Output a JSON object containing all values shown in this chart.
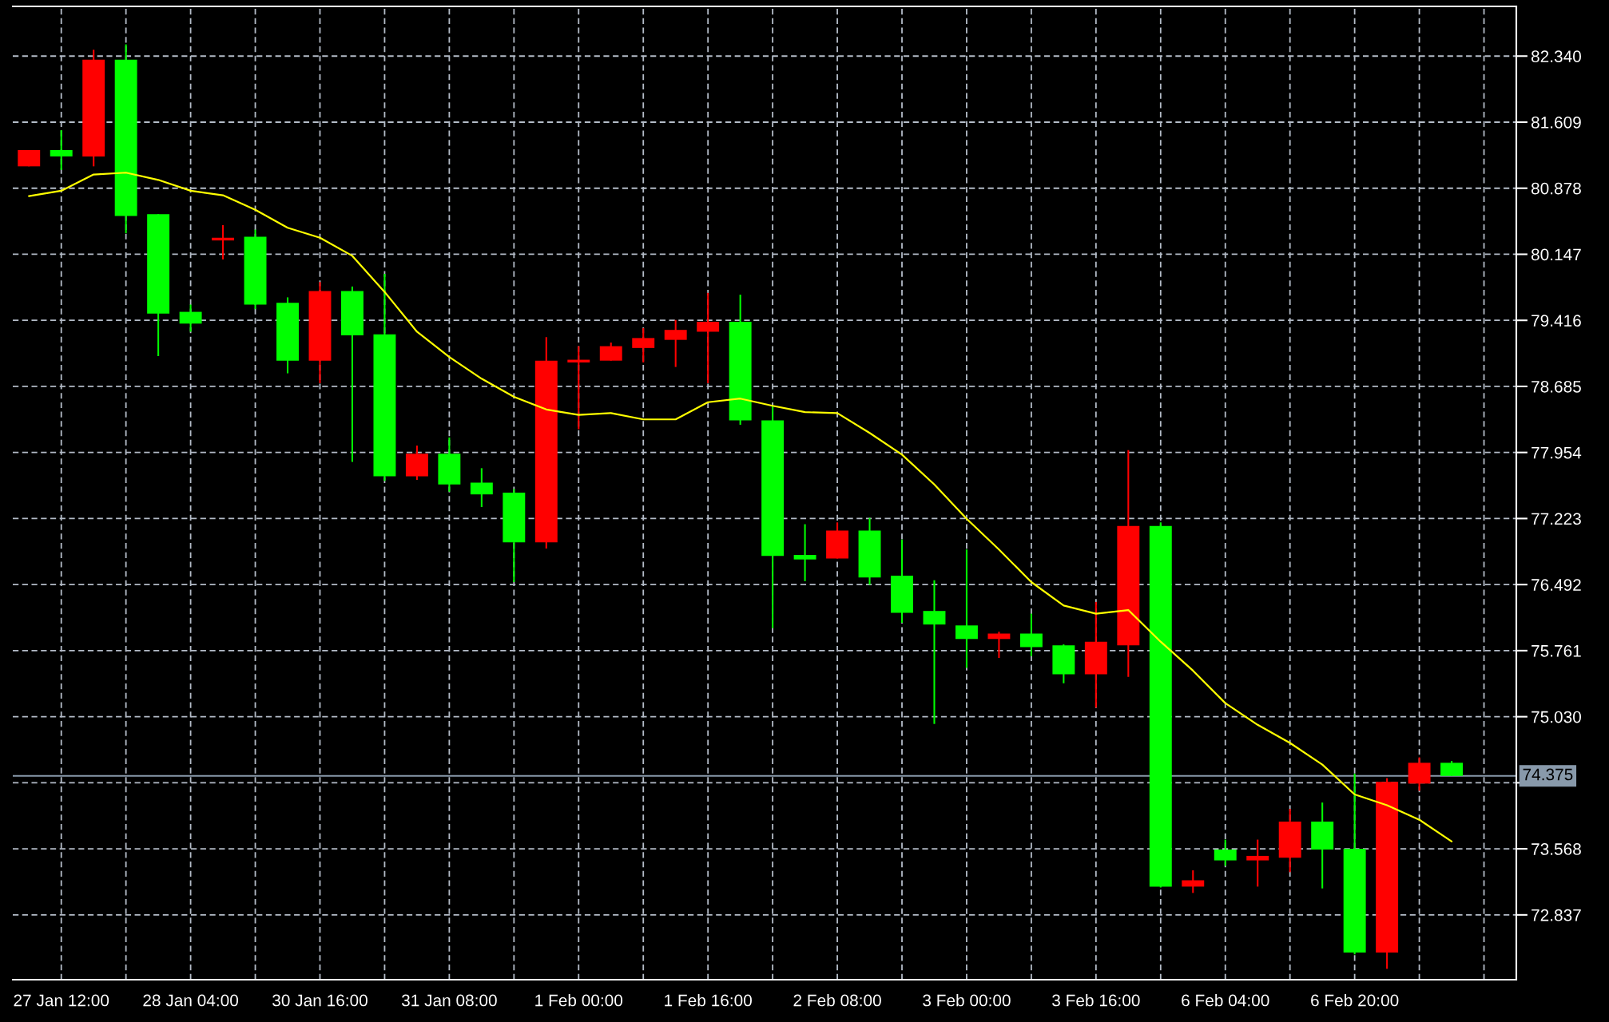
{
  "chart_data": {
    "type": "candlestick",
    "categories": [
      null,
      "27 Jan 12:00",
      null,
      null,
      null,
      "28 Jan 04:00",
      null,
      null,
      null,
      "30 Jan 16:00",
      null,
      null,
      null,
      "31 Jan 08:00",
      null,
      null,
      null,
      "1 Feb 00:00",
      null,
      null,
      null,
      "1 Feb 16:00",
      null,
      null,
      null,
      "2 Feb 08:00",
      null,
      null,
      null,
      "3 Feb 00:00",
      null,
      null,
      null,
      "3 Feb 16:00",
      null,
      null,
      null,
      "6 Feb 04:00",
      null,
      null,
      null,
      "6 Feb 20:00",
      null,
      null,
      null
    ],
    "ohlc": [
      [
        81.12,
        81.3,
        81.12,
        81.3
      ],
      [
        81.3,
        81.52,
        81.08,
        81.23
      ],
      [
        81.23,
        82.41,
        81.12,
        82.3
      ],
      [
        82.3,
        82.47,
        80.38,
        80.57
      ],
      [
        80.59,
        80.59,
        79.02,
        79.49
      ],
      [
        79.51,
        79.59,
        79.29,
        79.38
      ],
      [
        80.3,
        80.47,
        80.09,
        80.33
      ],
      [
        80.34,
        80.42,
        79.54,
        79.59
      ],
      [
        79.61,
        79.67,
        78.83,
        78.97
      ],
      [
        78.97,
        79.84,
        78.72,
        79.74
      ],
      [
        79.74,
        79.79,
        77.85,
        79.25
      ],
      [
        79.26,
        79.93,
        77.64,
        77.69
      ],
      [
        77.69,
        78.03,
        77.65,
        77.94
      ],
      [
        77.94,
        78.12,
        77.52,
        77.6
      ],
      [
        77.62,
        77.78,
        77.35,
        77.49
      ],
      [
        77.51,
        77.55,
        76.52,
        76.96
      ],
      [
        76.96,
        79.23,
        76.89,
        78.97
      ],
      [
        78.95,
        79.13,
        78.21,
        78.98
      ],
      [
        78.97,
        79.17,
        78.97,
        79.13
      ],
      [
        79.11,
        79.33,
        78.95,
        79.22
      ],
      [
        79.2,
        79.42,
        78.9,
        79.31
      ],
      [
        79.29,
        79.72,
        78.72,
        79.4
      ],
      [
        79.4,
        79.7,
        78.26,
        78.31
      ],
      [
        78.31,
        78.47,
        76.01,
        76.81
      ],
      [
        76.82,
        77.16,
        76.53,
        76.77
      ],
      [
        76.78,
        77.18,
        76.78,
        77.09
      ],
      [
        77.09,
        77.23,
        76.49,
        76.57
      ],
      [
        76.59,
        76.99,
        76.07,
        76.18
      ],
      [
        76.2,
        76.54,
        74.95,
        76.05
      ],
      [
        76.04,
        76.88,
        75.57,
        75.89
      ],
      [
        75.89,
        75.97,
        75.68,
        75.95
      ],
      [
        75.95,
        76.17,
        75.7,
        75.8
      ],
      [
        75.82,
        75.83,
        75.4,
        75.5
      ],
      [
        75.5,
        76.3,
        75.13,
        75.86
      ],
      [
        75.82,
        77.98,
        75.47,
        77.14
      ],
      [
        77.14,
        77.18,
        73.14,
        73.15
      ],
      [
        73.15,
        73.33,
        73.08,
        73.22
      ],
      [
        73.56,
        73.67,
        73.38,
        73.44
      ],
      [
        73.44,
        73.67,
        73.15,
        73.49
      ],
      [
        73.47,
        74.01,
        73.31,
        73.87
      ],
      [
        73.87,
        74.08,
        73.13,
        73.56
      ],
      [
        73.57,
        74.4,
        72.4,
        72.42
      ],
      [
        72.42,
        74.35,
        72.24,
        74.31
      ],
      [
        74.29,
        74.58,
        74.21,
        74.52
      ],
      [
        74.52,
        74.54,
        74.375,
        74.375
      ]
    ],
    "colors": [
      "#ff0000",
      "#00ff00",
      "#ff0000",
      "#00ff00",
      "#00ff00",
      "#00ff00",
      "#ff0000",
      "#00ff00",
      "#00ff00",
      "#ff0000",
      "#00ff00",
      "#00ff00",
      "#ff0000",
      "#00ff00",
      "#00ff00",
      "#00ff00",
      "#ff0000",
      "#ff0000",
      "#ff0000",
      "#ff0000",
      "#ff0000",
      "#ff0000",
      "#00ff00",
      "#00ff00",
      "#00ff00",
      "#ff0000",
      "#00ff00",
      "#00ff00",
      "#00ff00",
      "#00ff00",
      "#ff0000",
      "#00ff00",
      "#00ff00",
      "#ff0000",
      "#ff0000",
      "#00ff00",
      "#ff0000",
      "#00ff00",
      "#ff0000",
      "#ff0000",
      "#00ff00",
      "#00ff00",
      "#ff0000",
      "#ff0000",
      "#00ff00"
    ],
    "series": [
      {
        "type": "line",
        "color": "#ffff00",
        "values": [
          80.79,
          80.85,
          81.03,
          81.05,
          80.97,
          80.85,
          80.8,
          80.64,
          80.44,
          80.33,
          80.13,
          79.73,
          79.29,
          79.01,
          78.77,
          78.57,
          78.43,
          78.37,
          78.39,
          78.32,
          78.32,
          78.51,
          78.55,
          78.47,
          78.4,
          78.39,
          78.17,
          77.93,
          77.6,
          77.22,
          76.88,
          76.52,
          76.26,
          76.17,
          76.21,
          75.86,
          75.54,
          75.18,
          74.94,
          74.74,
          74.5,
          74.17,
          74.05,
          73.89,
          73.65
        ]
      }
    ],
    "ylim": [
      72.12,
      82.89
    ],
    "yticks": [
      {
        "value": 82.34,
        "label": "82.340"
      },
      81.609,
      80.878,
      80.147,
      79.416,
      78.685,
      77.954,
      77.223,
      76.492,
      75.761,
      {
        "value": 75.03,
        "label": "75.030"
      },
      {
        "value": 74.299,
        "label": null
      },
      73.568,
      72.837
    ],
    "grid": true,
    "ref_lines": [
      {
        "axis": "y",
        "value": 74.375,
        "label": "74.375",
        "color": "#8899aa"
      }
    ]
  }
}
